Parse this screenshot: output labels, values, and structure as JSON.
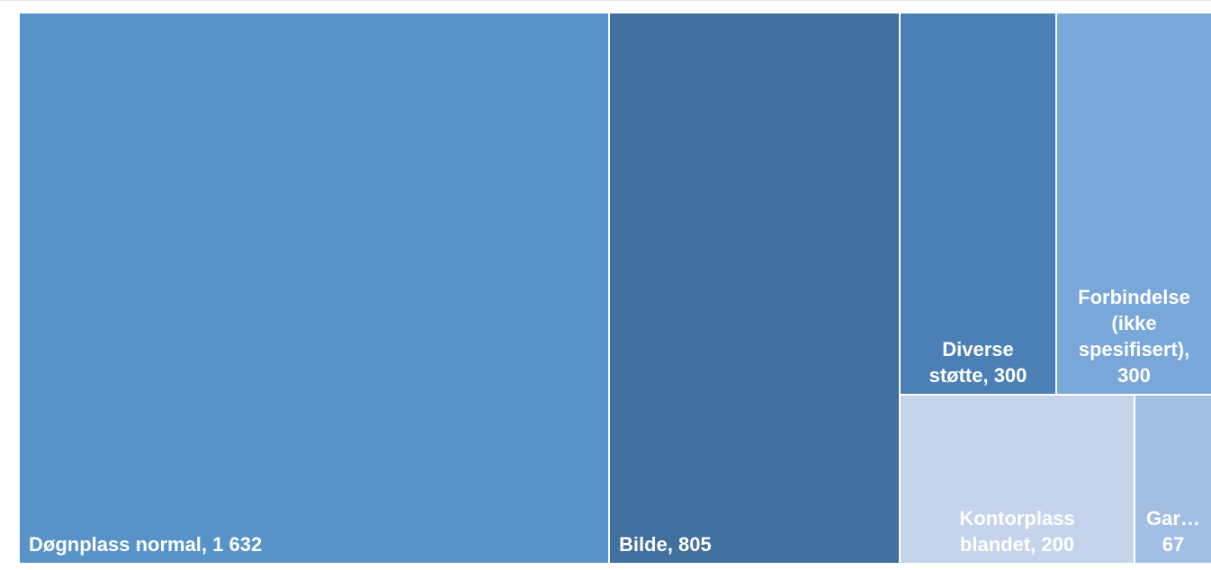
{
  "chart_data": {
    "type": "treemap",
    "title": "",
    "items": [
      {
        "label": "Døgnplass normal, 1 632",
        "name": "Døgnplass normal",
        "value": 1632,
        "color": "#5793c9"
      },
      {
        "label": "Bilde,  805",
        "name": "Bilde",
        "value": 805,
        "color": "#41709e"
      },
      {
        "label": "Diverse\nstøtte,  300",
        "name": "Diverse støtte",
        "value": 300,
        "color": "#4b80b6"
      },
      {
        "label": "Forbindelse\n(ikke\nspesifisert),\n300",
        "name": "Forbindelse (ikke spesifisert)",
        "value": 300,
        "color": "#79a7d9"
      },
      {
        "label": "Kontorplass\nblandet,  200",
        "name": "Kontorplass blandet",
        "value": 200,
        "color": "#c5d4ea"
      },
      {
        "label": "Gar…\n67",
        "name": "Gar…",
        "value": 67,
        "color": "#a3bee3"
      }
    ]
  }
}
